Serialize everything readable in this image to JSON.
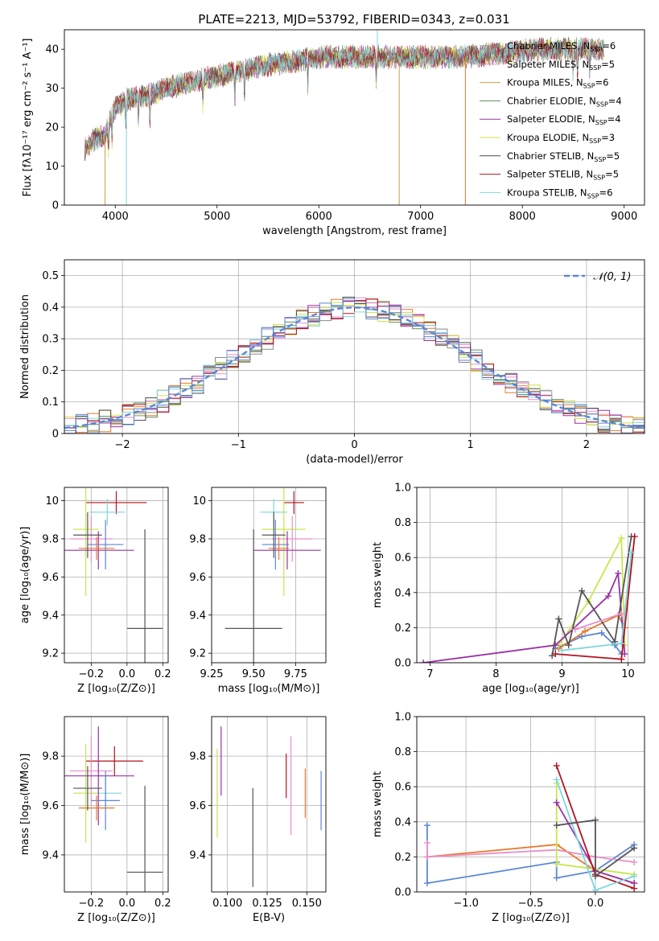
{
  "figure": {
    "title": "PLATE=2213, MJD=53792, FIBERID=0343, z=0.031"
  },
  "colors": {
    "Chabrier MILES": "#8a8a8a",
    "Salpeter MILES": "#e88fc9",
    "Kroupa MILES": "#c8a040",
    "Chabrier ELODIE": "#5a8f5a",
    "Salpeter ELODIE": "#9b30a8",
    "Kroupa ELODIE": "#d6e04a",
    "Chabrier STELIB": "#4a4a4a",
    "Salpeter STELIB": "#b3121f",
    "Kroupa STELIB": "#7fd6dc",
    "blue": "#5b86d6",
    "orange": "#e8782a",
    "lime": "#c6e84a",
    "purple": "#9b30a8",
    "grey": "#555555",
    "red": "#b3121f",
    "cyan": "#7fd6dc",
    "pink": "#e88fc9"
  },
  "chart_data": [
    {
      "type": "line",
      "id": "spectrum",
      "title": "PLATE=2213, MJD=53792, FIBERID=0343, z=0.031",
      "xlabel": "wavelength [Angstrom, rest frame]",
      "ylabel": "Flux [fλ10⁻¹⁷ erg cm⁻² s⁻¹ A⁻¹]",
      "xlim": [
        3500,
        9200
      ],
      "ylim": [
        0,
        45
      ],
      "xticks": [
        4000,
        5000,
        6000,
        7000,
        8000,
        9000
      ],
      "yticks": [
        0,
        10,
        20,
        30,
        40
      ],
      "grid": false,
      "legend_position": "top-right",
      "continuum_anchors": [
        [
          3700,
          14
        ],
        [
          3800,
          17
        ],
        [
          3900,
          18
        ],
        [
          3950,
          22
        ],
        [
          4000,
          25
        ],
        [
          4100,
          27
        ],
        [
          4300,
          28
        ],
        [
          4500,
          30
        ],
        [
          4800,
          32
        ],
        [
          5000,
          33
        ],
        [
          5300,
          35
        ],
        [
          5500,
          36
        ],
        [
          5800,
          37
        ],
        [
          6000,
          38
        ],
        [
          6300,
          38
        ],
        [
          6600,
          38
        ],
        [
          7000,
          38
        ],
        [
          7400,
          38
        ],
        [
          7800,
          39
        ],
        [
          8200,
          40
        ],
        [
          8600,
          40
        ],
        [
          8800,
          40
        ]
      ],
      "series": [
        {
          "name": "Chabrier MILES, N_SSP=6",
          "color_key": "Chabrier MILES"
        },
        {
          "name": "Salpeter MILES, N_SSP=5",
          "color_key": "Salpeter MILES"
        },
        {
          "name": "Kroupa MILES, N_SSP=6",
          "color_key": "Kroupa MILES"
        },
        {
          "name": "Chabrier ELODIE, N_SSP=4",
          "color_key": "Chabrier ELODIE"
        },
        {
          "name": "Salpeter ELODIE, N_SSP=4",
          "color_key": "Salpeter ELODIE"
        },
        {
          "name": "Kroupa ELODIE, N_SSP=3",
          "color_key": "Kroupa ELODIE"
        },
        {
          "name": "Chabrier STELIB, N_SSP=5",
          "color_key": "Chabrier STELIB"
        },
        {
          "name": "Salpeter STELIB, N_SSP=5",
          "color_key": "Salpeter STELIB"
        },
        {
          "name": "Kroupa STELIB, N_SSP=6",
          "color_key": "Kroupa STELIB"
        }
      ]
    },
    {
      "type": "line",
      "id": "residuals",
      "xlabel": "(data-model)/error",
      "ylabel": "Normed distribution",
      "xlim": [
        -2.5,
        2.5
      ],
      "ylim": [
        0,
        0.55
      ],
      "xticks": [
        -2,
        -1,
        0,
        1,
        2
      ],
      "yticks": [
        0.0,
        0.1,
        0.2,
        0.3,
        0.4,
        0.5
      ],
      "grid": true,
      "legend_position": "top-right",
      "series": [
        {
          "name": "𝒩(0, 1)",
          "color_key": "blue",
          "style": "dashed",
          "function": "normal",
          "mean": 0,
          "sigma": 1
        }
      ],
      "histogram_colors": [
        "Chabrier MILES",
        "Salpeter MILES",
        "orange",
        "Chabrier ELODIE",
        "Salpeter ELODIE",
        "Kroupa ELODIE",
        "Chabrier STELIB",
        "Salpeter STELIB",
        "Kroupa STELIB",
        "blue"
      ]
    },
    {
      "type": "scatter",
      "id": "z-age",
      "xlabel": "Z [log₁₀(Z/Z⊙)]",
      "ylabel": "age  [log₁₀(age/yr)]",
      "xlim": [
        -0.35,
        0.23
      ],
      "ylim": [
        9.15,
        10.07
      ],
      "xticks": [
        -0.2,
        0.0,
        0.2
      ],
      "yticks": [
        9.2,
        9.4,
        9.6,
        9.8,
        10.0
      ],
      "grid": true,
      "points": [
        {
          "color_key": "grey",
          "x": 0.1,
          "xerr": 0.1,
          "y": 9.33,
          "yerr": 0.52
        },
        {
          "color_key": "red",
          "x": -0.06,
          "xerr": 0.17,
          "y": 9.99,
          "yerr": 0.06
        },
        {
          "color_key": "cyan",
          "x": -0.11,
          "xerr": 0.1,
          "y": 9.94,
          "yerr": 0.07
        },
        {
          "color_key": "lime",
          "x": -0.23,
          "xerr": 0.07,
          "y": 9.85,
          "yerr": 0.35
        },
        {
          "color_key": "pink",
          "x": -0.2,
          "xerr": 0.12,
          "y": 9.8,
          "yerr": 0.12
        },
        {
          "color_key": "purple",
          "x": -0.16,
          "xerr": 0.2,
          "y": 9.74,
          "yerr": 0.1
        },
        {
          "color_key": "blue",
          "x": -0.12,
          "xerr": 0.1,
          "y": 9.77,
          "yerr": 0.13
        },
        {
          "color_key": "orange",
          "x": -0.17,
          "xerr": 0.1,
          "y": 9.75,
          "yerr": 0.06
        },
        {
          "color_key": "grey",
          "x": -0.22,
          "xerr": 0.08,
          "y": 9.82,
          "yerr": 0.12
        }
      ]
    },
    {
      "type": "scatter",
      "id": "mass-age",
      "xlabel": "mass [log₁₀(M/M⊙)]",
      "xlim": [
        9.25,
        9.93
      ],
      "ylim": [
        9.15,
        10.07
      ],
      "xticks": [
        9.25,
        9.5,
        9.75
      ],
      "yticks": [
        9.2,
        9.4,
        9.6,
        9.8,
        10.0
      ],
      "grid": true,
      "points": [
        {
          "color_key": "grey",
          "x": 9.5,
          "xerr": 0.17,
          "y": 9.33,
          "yerr": 0.52
        },
        {
          "color_key": "red",
          "x": 9.74,
          "xerr": 0.06,
          "y": 9.99,
          "yerr": 0.06
        },
        {
          "color_key": "cyan",
          "x": 9.62,
          "xerr": 0.08,
          "y": 9.94,
          "yerr": 0.07
        },
        {
          "color_key": "lime",
          "x": 9.68,
          "xerr": 0.13,
          "y": 9.85,
          "yerr": 0.35
        },
        {
          "color_key": "pink",
          "x": 9.73,
          "xerr": 0.12,
          "y": 9.8,
          "yerr": 0.12
        },
        {
          "color_key": "purple",
          "x": 9.7,
          "xerr": 0.2,
          "y": 9.74,
          "yerr": 0.1
        },
        {
          "color_key": "blue",
          "x": 9.63,
          "xerr": 0.08,
          "y": 9.77,
          "yerr": 0.13
        },
        {
          "color_key": "orange",
          "x": 9.65,
          "xerr": 0.06,
          "y": 9.75,
          "yerr": 0.06
        },
        {
          "color_key": "grey",
          "x": 9.62,
          "xerr": 0.07,
          "y": 9.82,
          "yerr": 0.12
        }
      ]
    },
    {
      "type": "line",
      "id": "age-weight",
      "xlabel": "age  [log₁₀(age/yr)]",
      "ylabel": "mass weight",
      "xlim": [
        6.8,
        10.25
      ],
      "ylim": [
        0,
        1
      ],
      "xticks": [
        7,
        8,
        9,
        10
      ],
      "yticks": [
        0.0,
        0.2,
        0.4,
        0.6,
        0.8,
        1.0
      ],
      "grid": true,
      "series": [
        {
          "color_key": "blue",
          "points": [
            [
              8.9,
              0.08
            ],
            [
              9.3,
              0.15
            ],
            [
              9.6,
              0.17
            ],
            [
              9.8,
              0.1
            ],
            [
              9.9,
              0.05
            ]
          ]
        },
        {
          "color_key": "orange",
          "points": [
            [
              8.95,
              0.08
            ],
            [
              9.35,
              0.18
            ],
            [
              9.85,
              0.27
            ],
            [
              9.95,
              0.2
            ]
          ]
        },
        {
          "color_key": "lime",
          "points": [
            [
              8.95,
              0.1
            ],
            [
              9.4,
              0.35
            ],
            [
              9.9,
              0.71
            ],
            [
              9.95,
              0.1
            ]
          ]
        },
        {
          "color_key": "purple",
          "points": [
            [
              6.9,
              0.0
            ],
            [
              8.9,
              0.1
            ],
            [
              9.7,
              0.38
            ],
            [
              9.85,
              0.51
            ],
            [
              9.95,
              0.05
            ]
          ]
        },
        {
          "color_key": "grey",
          "points": [
            [
              8.85,
              0.04
            ],
            [
              8.95,
              0.25
            ],
            [
              9.1,
              0.1
            ],
            [
              9.3,
              0.41
            ],
            [
              9.8,
              0.12
            ],
            [
              10.05,
              0.72
            ]
          ]
        },
        {
          "color_key": "red",
          "points": [
            [
              8.9,
              0.05
            ],
            [
              9.9,
              0.02
            ],
            [
              10.1,
              0.72
            ]
          ]
        },
        {
          "color_key": "cyan",
          "points": [
            [
              9.0,
              0.07
            ],
            [
              9.9,
              0.11
            ],
            [
              10.05,
              0.63
            ]
          ]
        },
        {
          "color_key": "pink",
          "points": [
            [
              9.2,
              0.19
            ],
            [
              9.9,
              0.28
            ]
          ]
        }
      ]
    },
    {
      "type": "scatter",
      "id": "z-mass",
      "xlabel": "Z [log₁₀(Z/Z⊙)]",
      "ylabel": "mass [log₁₀(M/M⊙)]",
      "xlim": [
        -0.35,
        0.23
      ],
      "ylim": [
        9.25,
        9.96
      ],
      "xticks": [
        -0.2,
        0.0,
        0.2
      ],
      "yticks": [
        9.4,
        9.6,
        9.8
      ],
      "grid": true,
      "points": [
        {
          "color_key": "grey",
          "x": 0.1,
          "xerr": 0.1,
          "y": 9.33,
          "yerr": 0.35
        },
        {
          "color_key": "red",
          "x": -0.07,
          "xerr": 0.16,
          "y": 9.78,
          "yerr": 0.06
        },
        {
          "color_key": "cyan",
          "x": -0.12,
          "xerr": 0.09,
          "y": 9.65,
          "yerr": 0.07
        },
        {
          "color_key": "lime",
          "x": -0.23,
          "xerr": 0.07,
          "y": 9.65,
          "yerr": 0.2
        },
        {
          "color_key": "pink",
          "x": -0.2,
          "xerr": 0.12,
          "y": 9.74,
          "yerr": 0.14
        },
        {
          "color_key": "purple",
          "x": -0.16,
          "xerr": 0.2,
          "y": 9.72,
          "yerr": 0.2
        },
        {
          "color_key": "blue",
          "x": -0.12,
          "xerr": 0.08,
          "y": 9.62,
          "yerr": 0.12
        },
        {
          "color_key": "orange",
          "x": -0.17,
          "xerr": 0.1,
          "y": 9.59,
          "yerr": 0.05
        },
        {
          "color_key": "grey",
          "x": -0.22,
          "xerr": 0.08,
          "y": 9.67,
          "yerr": 0.09
        }
      ]
    },
    {
      "type": "scatter",
      "id": "ebv-mass",
      "xlabel": "E(B-V)",
      "xlim": [
        0.09,
        0.162
      ],
      "ylim": [
        9.25,
        9.96
      ],
      "xticks": [
        0.1,
        0.125,
        0.15
      ],
      "yticks": [
        9.4,
        9.6,
        9.8
      ],
      "grid": true,
      "points": [
        {
          "color_key": "lime",
          "x": 0.0935,
          "y": 9.65,
          "yerr": 0.18
        },
        {
          "color_key": "purple",
          "x": 0.096,
          "y": 9.78,
          "yerr": 0.14
        },
        {
          "color_key": "grey",
          "x": 0.116,
          "y": 9.47,
          "yerr": 0.2
        },
        {
          "color_key": "red",
          "x": 0.137,
          "y": 9.72,
          "yerr": 0.09
        },
        {
          "color_key": "pink",
          "x": 0.14,
          "y": 9.68,
          "yerr": 0.2
        },
        {
          "color_key": "orange",
          "x": 0.149,
          "y": 9.65,
          "yerr": 0.1
        },
        {
          "color_key": "blue",
          "x": 0.159,
          "y": 9.62,
          "yerr": 0.12
        }
      ]
    },
    {
      "type": "line",
      "id": "z-weight",
      "xlabel": "Z [log₁₀(Z/Z⊙)]",
      "ylabel": "mass weight",
      "xlim": [
        -1.38,
        0.38
      ],
      "ylim": [
        0,
        1
      ],
      "xticks": [
        -1.0,
        -0.5,
        0.0
      ],
      "yticks": [
        0.0,
        0.2,
        0.4,
        0.6,
        0.8,
        1.0
      ],
      "grid": true,
      "series": [
        {
          "color_key": "blue",
          "points": [
            [
              -1.3,
              0.38
            ],
            [
              -1.3,
              0.05
            ],
            [
              -0.3,
              0.17
            ],
            [
              -0.3,
              0.08
            ],
            [
              0.0,
              0.12
            ],
            [
              0.3,
              0.27
            ]
          ]
        },
        {
          "color_key": "orange",
          "points": [
            [
              -1.3,
              0.2
            ],
            [
              -0.3,
              0.27
            ],
            [
              0.0,
              0.12
            ],
            [
              0.3,
              0.05
            ]
          ]
        },
        {
          "color_key": "pink",
          "points": [
            [
              -1.3,
              0.28
            ],
            [
              -1.3,
              0.2
            ],
            [
              -0.3,
              0.24
            ],
            [
              0.0,
              0.2
            ],
            [
              0.3,
              0.17
            ]
          ]
        },
        {
          "color_key": "lime",
          "points": [
            [
              -0.3,
              0.62
            ],
            [
              -0.3,
              0.16
            ],
            [
              0.0,
              0.13
            ],
            [
              0.3,
              0.1
            ]
          ]
        },
        {
          "color_key": "purple",
          "points": [
            [
              -0.3,
              0.51
            ],
            [
              0.0,
              0.12
            ],
            [
              0.3,
              0.05
            ]
          ]
        },
        {
          "color_key": "red",
          "points": [
            [
              -0.3,
              0.72
            ],
            [
              0.0,
              0.1
            ],
            [
              0.3,
              0.02
            ]
          ]
        },
        {
          "color_key": "cyan",
          "points": [
            [
              -0.3,
              0.64
            ],
            [
              0.0,
              0.01
            ],
            [
              0.3,
              0.09
            ]
          ]
        },
        {
          "color_key": "grey",
          "points": [
            [
              -0.3,
              0.38
            ],
            [
              0.0,
              0.41
            ],
            [
              0.0,
              0.09
            ],
            [
              0.3,
              0.25
            ]
          ]
        }
      ]
    }
  ]
}
